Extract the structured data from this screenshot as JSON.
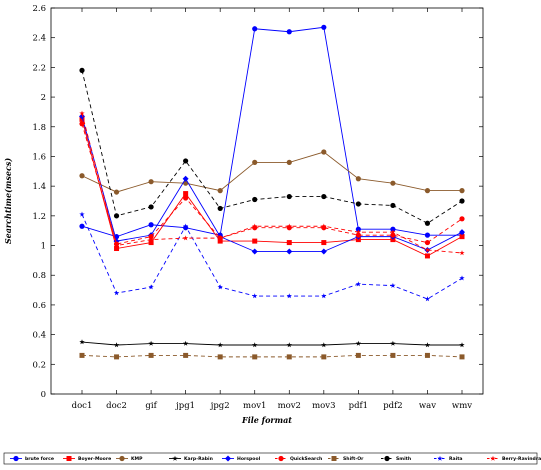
{
  "chart_data": {
    "type": "line",
    "xlabel": "File format",
    "ylabel": "Searchtime(msecs)",
    "categories": [
      "doc1",
      "doc2",
      "gif",
      "jpg1",
      "jpg2",
      "mov1",
      "mov2",
      "mov3",
      "pdf1",
      "pdf2",
      "wav",
      "wmv"
    ],
    "ylim": [
      0,
      2.6
    ],
    "yticks": [
      "0",
      "0.2",
      "0.4",
      "0.6",
      "0.8",
      "1",
      "1.2",
      "1.4",
      "1.6",
      "1.8",
      "2",
      "2.2",
      "2.4",
      "2.6"
    ],
    "grid": false,
    "legend_position": "bottom",
    "series": [
      {
        "name": "brute force",
        "color": "#0000ff",
        "dash": "solid",
        "marker": "circle",
        "values": [
          1.13,
          1.06,
          1.14,
          1.12,
          1.07,
          2.46,
          2.44,
          2.47,
          1.11,
          1.11,
          1.07,
          1.07
        ]
      },
      {
        "name": "Boyer-Moore",
        "color": "#ff0000",
        "dash": "solid",
        "marker": "square",
        "values": [
          1.85,
          0.98,
          1.02,
          1.35,
          1.03,
          1.03,
          1.02,
          1.02,
          1.04,
          1.04,
          0.93,
          1.06
        ]
      },
      {
        "name": "KMP",
        "color": "#8b5a2b",
        "dash": "solid",
        "marker": "circle",
        "values": [
          1.47,
          1.36,
          1.43,
          1.42,
          1.37,
          1.56,
          1.56,
          1.63,
          1.45,
          1.42,
          1.37,
          1.37
        ]
      },
      {
        "name": "Karp-Rabin",
        "color": "#000000",
        "dash": "solid",
        "marker": "star",
        "values": [
          0.35,
          0.33,
          0.34,
          0.34,
          0.33,
          0.33,
          0.33,
          0.33,
          0.34,
          0.34,
          0.33,
          0.33
        ]
      },
      {
        "name": "Horspool",
        "color": "#0000ff",
        "dash": "solid",
        "marker": "diamond",
        "values": [
          1.87,
          1.03,
          1.07,
          1.45,
          1.06,
          0.96,
          0.96,
          0.96,
          1.06,
          1.06,
          0.97,
          1.09
        ]
      },
      {
        "name": "QuickSearch",
        "color": "#ff0000",
        "dash": "dashed",
        "marker": "circle",
        "values": [
          1.82,
          1.01,
          1.06,
          1.32,
          1.05,
          1.12,
          1.12,
          1.12,
          1.07,
          1.07,
          1.02,
          1.18
        ]
      },
      {
        "name": "Shift-Or",
        "color": "#8b5a2b",
        "dash": "dashed",
        "marker": "square",
        "values": [
          0.26,
          0.25,
          0.26,
          0.26,
          0.25,
          0.25,
          0.25,
          0.25,
          0.26,
          0.26,
          0.26,
          0.25
        ]
      },
      {
        "name": "Smith",
        "color": "#000000",
        "dash": "dashed",
        "marker": "circle",
        "values": [
          2.18,
          1.2,
          1.26,
          1.57,
          1.25,
          1.31,
          1.33,
          1.33,
          1.28,
          1.27,
          1.15,
          1.3
        ]
      },
      {
        "name": "Raita",
        "color": "#0000ff",
        "dash": "dashed",
        "marker": "star",
        "values": [
          1.21,
          0.68,
          0.72,
          1.13,
          0.72,
          0.66,
          0.66,
          0.66,
          0.74,
          0.73,
          0.64,
          0.78
        ]
      },
      {
        "name": "Berry-Ravindran",
        "color": "#ff0000",
        "dash": "dashed",
        "marker": "star",
        "values": [
          1.89,
          1.0,
          1.04,
          1.05,
          1.05,
          1.13,
          1.13,
          1.13,
          1.09,
          1.09,
          0.97,
          0.95
        ]
      }
    ]
  }
}
